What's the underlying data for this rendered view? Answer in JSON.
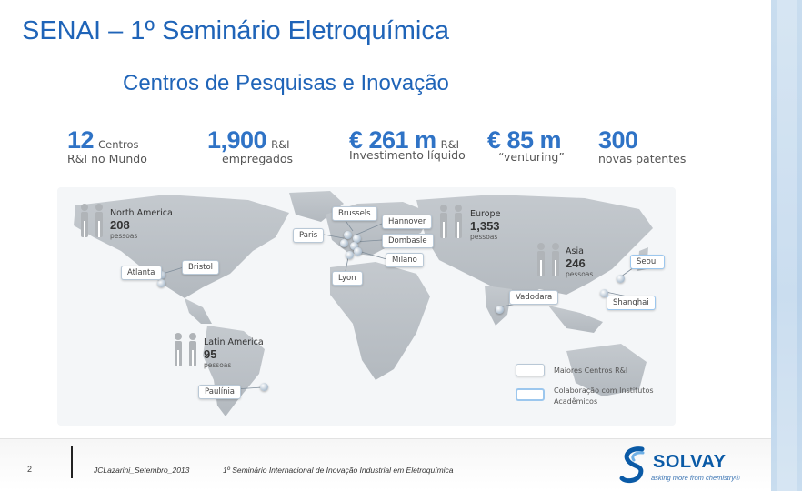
{
  "header": {
    "title": "SENAI – 1º Seminário Eletroquímica",
    "subtitle": "Centros de Pesquisas e Inovação"
  },
  "stats": [
    {
      "big": "12",
      "small": "Centros",
      "line2": "R&I no Mundo"
    },
    {
      "big": "1,900",
      "small": "R&I",
      "line2": "empregados"
    },
    {
      "big": "€ 261 m",
      "small": "R&I",
      "line2": "Investimento líquido"
    },
    {
      "big": "€ 85 m",
      "small": "",
      "line2": "“venturing”"
    },
    {
      "big": "300",
      "small": "",
      "line2": "novas patentes"
    }
  ],
  "regions": {
    "north_america": {
      "name": "North America",
      "num": "208",
      "unit": "pessoas"
    },
    "europe": {
      "name": "Europe",
      "num": "1,353",
      "unit": "pessoas"
    },
    "asia": {
      "name": "Asia",
      "num": "246",
      "unit": "pessoas"
    },
    "latin_america": {
      "name": "Latin America",
      "num": "95",
      "unit": "pessoas"
    }
  },
  "cities": {
    "brussels": "Brussels",
    "hannover": "Hannover",
    "paris": "Paris",
    "dombasle": "Dombasle",
    "milano": "Milano",
    "lyon": "Lyon",
    "bristol": "Bristol",
    "atlanta": "Atlanta",
    "vadodara": "Vadodara",
    "seoul": "Seoul",
    "shanghai": "Shanghai",
    "paulinia": "Paulínia"
  },
  "legend": {
    "major": "Maiores Centros R&I",
    "collab_line1": "Colaboração com Institutos",
    "collab_line2": "Acadêmicos"
  },
  "colors": {
    "title_blue": "#1f64b8",
    "stat_blue": "#2f73c6",
    "legend_major_border": "#b9c8d6",
    "legend_collab_border": "#9cc7ee"
  },
  "footer": {
    "page": "2",
    "author": "JCLazarini_Setembro_2013",
    "event": "1º Seminário Internacional de Inovação Industrial em Eletroquímica"
  },
  "logo": {
    "name": "SOLVAY",
    "tagline": "asking more from chemistry®"
  }
}
